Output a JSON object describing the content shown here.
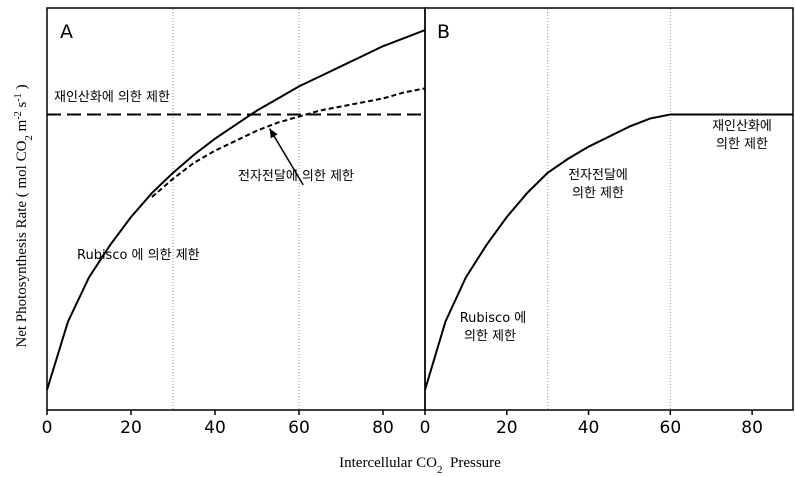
{
  "chart_data": [
    {
      "type": "line",
      "panel_label": "A",
      "x_ticks": [
        0,
        20,
        40,
        60,
        80
      ],
      "xlim": [
        0,
        90
      ],
      "ylim": [
        0,
        1
      ],
      "y_tick_labels": false,
      "series": [
        {
          "id": "rubisco",
          "style": "solid",
          "x": [
            0,
            5,
            10,
            15,
            20,
            25,
            30,
            35,
            40,
            45,
            50,
            55,
            60,
            65,
            70,
            75,
            80,
            85,
            90
          ],
          "y": [
            0.05,
            0.22,
            0.33,
            0.41,
            0.48,
            0.54,
            0.59,
            0.635,
            0.675,
            0.71,
            0.745,
            0.775,
            0.805,
            0.83,
            0.855,
            0.88,
            0.905,
            0.925,
            0.945
          ]
        },
        {
          "id": "electron-transport",
          "style": "dashed",
          "x": [
            25,
            30,
            35,
            40,
            45,
            50,
            55,
            60,
            65,
            70,
            75,
            80,
            85,
            90
          ],
          "y": [
            0.53,
            0.575,
            0.615,
            0.645,
            0.67,
            0.695,
            0.715,
            0.73,
            0.745,
            0.755,
            0.765,
            0.775,
            0.79,
            0.8
          ]
        },
        {
          "id": "regeneration",
          "style": "long-dashed",
          "x": [
            0,
            90
          ],
          "y": [
            0.735,
            0.735
          ]
        }
      ],
      "vlines": [
        30,
        60
      ],
      "annotations": {
        "regeneration": "재인산화에 의한 제한",
        "electron_transport": "전자전달에 의한 제한",
        "rubisco": "Rubisco 에 의한 제한"
      },
      "arrow": {
        "from_x": 61,
        "from_y": 0.56,
        "to_x": 53,
        "to_y": 0.7
      }
    },
    {
      "type": "line",
      "panel_label": "B",
      "x_ticks": [
        0,
        20,
        40,
        60,
        80
      ],
      "xlim": [
        0,
        90
      ],
      "ylim": [
        0,
        1
      ],
      "series": [
        {
          "id": "net-rate",
          "style": "solid",
          "x": [
            0,
            5,
            10,
            15,
            20,
            25,
            30,
            35,
            40,
            45,
            50,
            55,
            60,
            65,
            70,
            75,
            80,
            85,
            90
          ],
          "y": [
            0.05,
            0.22,
            0.33,
            0.41,
            0.48,
            0.54,
            0.59,
            0.625,
            0.655,
            0.68,
            0.705,
            0.725,
            0.735,
            0.735,
            0.735,
            0.735,
            0.735,
            0.735,
            0.735
          ]
        }
      ],
      "vlines": [
        30,
        60
      ],
      "annotations": {
        "rubisco_line1": "Rubisco 에",
        "rubisco_line2": "의한 제한",
        "electron_line1": "전자전달에",
        "electron_line2": "의한 제한",
        "regeneration_line1": "재인산화에",
        "regeneration_line2": "의한 제한"
      }
    }
  ],
  "ylabel_main": "Net Photosynthesis Rate ( mol CO",
  "ylabel_sub": "2",
  "ylabel_m": " m",
  "ylabel_m_exp": "-2",
  "ylabel_s": " s",
  "ylabel_s_exp": "-1",
  "ylabel_close": ")",
  "xlabel_main": "Intercellular CO",
  "xlabel_sub": "2",
  "xlabel_rest": "  Pressure"
}
